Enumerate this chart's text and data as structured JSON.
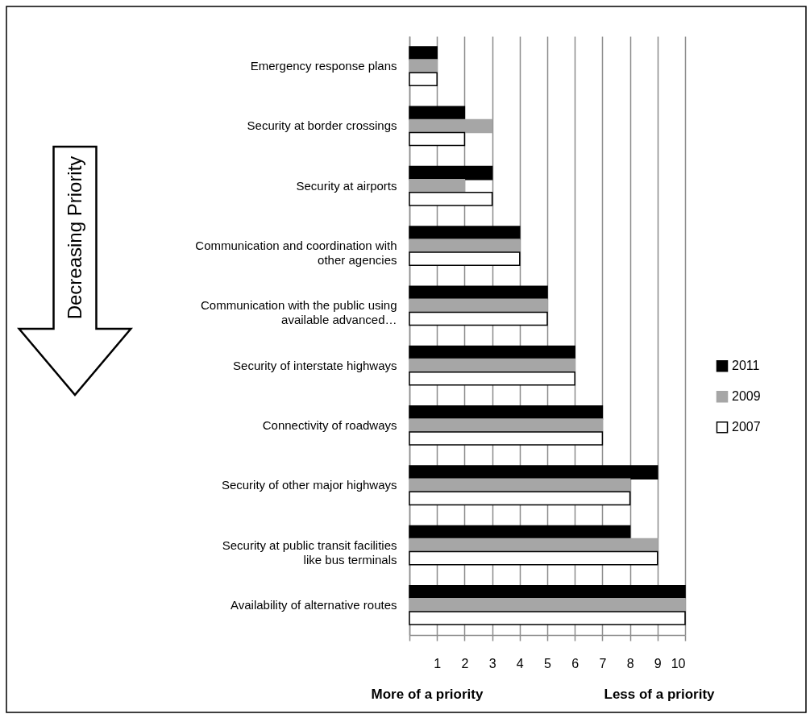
{
  "chart_data": {
    "type": "bar",
    "orientation": "horizontal",
    "categories": [
      "Emergency response plans",
      "Security at border crossings",
      "Security at airports",
      "Communication and coordination with other agencies",
      "Communication with the public using available advanced…",
      "Security of interstate highways",
      "Connectivity of roadways",
      "Security of other major highways",
      "Security at public transit facilities like bus terminals",
      "Availability of alternative routes"
    ],
    "series": [
      {
        "name": "2011",
        "color": "#000000",
        "values": [
          1,
          2,
          3,
          4,
          5,
          6,
          7,
          9,
          8,
          10
        ]
      },
      {
        "name": "2009",
        "color": "#a6a6a6",
        "values": [
          1,
          3,
          2,
          4,
          5,
          6,
          7,
          8,
          9,
          10
        ]
      },
      {
        "name": "2007",
        "color": "#ffffff",
        "values": [
          1,
          2,
          3,
          4,
          5,
          6,
          7,
          8,
          9,
          10
        ]
      }
    ],
    "xlim": [
      0,
      10
    ],
    "xticks": [
      {
        "value": 0,
        "label": null
      },
      1,
      2,
      3,
      4,
      5,
      6,
      7,
      8,
      9,
      10
    ],
    "grid": "x",
    "legend": "right",
    "annotations": [
      "Decreasing Priority",
      "More of a priority",
      "Less of a priority"
    ]
  }
}
